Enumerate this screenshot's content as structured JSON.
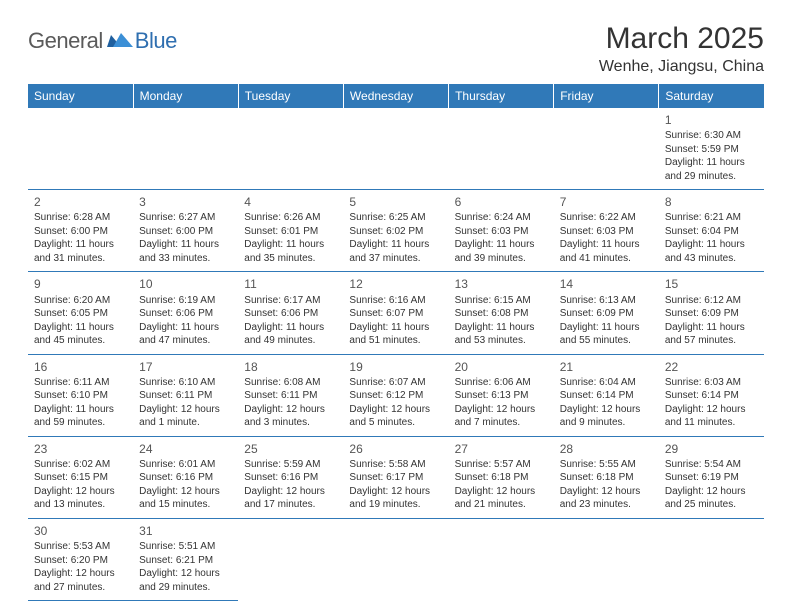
{
  "logo": {
    "general": "General",
    "blue": "Blue"
  },
  "title": "March 2025",
  "location": "Wenhe, Jiangsu, China",
  "colors": {
    "header_bg": "#3079b8",
    "header_text": "#ffffff",
    "cell_border": "#3079b8",
    "text": "#333333",
    "logo_gray": "#5a5a5a",
    "logo_blue": "#2f6fb0"
  },
  "dayHeaders": [
    "Sunday",
    "Monday",
    "Tuesday",
    "Wednesday",
    "Thursday",
    "Friday",
    "Saturday"
  ],
  "weeks": [
    [
      null,
      null,
      null,
      null,
      null,
      null,
      {
        "n": "1",
        "sr": "Sunrise: 6:30 AM",
        "ss": "Sunset: 5:59 PM",
        "dl": "Daylight: 11 hours and 29 minutes."
      }
    ],
    [
      {
        "n": "2",
        "sr": "Sunrise: 6:28 AM",
        "ss": "Sunset: 6:00 PM",
        "dl": "Daylight: 11 hours and 31 minutes."
      },
      {
        "n": "3",
        "sr": "Sunrise: 6:27 AM",
        "ss": "Sunset: 6:00 PM",
        "dl": "Daylight: 11 hours and 33 minutes."
      },
      {
        "n": "4",
        "sr": "Sunrise: 6:26 AM",
        "ss": "Sunset: 6:01 PM",
        "dl": "Daylight: 11 hours and 35 minutes."
      },
      {
        "n": "5",
        "sr": "Sunrise: 6:25 AM",
        "ss": "Sunset: 6:02 PM",
        "dl": "Daylight: 11 hours and 37 minutes."
      },
      {
        "n": "6",
        "sr": "Sunrise: 6:24 AM",
        "ss": "Sunset: 6:03 PM",
        "dl": "Daylight: 11 hours and 39 minutes."
      },
      {
        "n": "7",
        "sr": "Sunrise: 6:22 AM",
        "ss": "Sunset: 6:03 PM",
        "dl": "Daylight: 11 hours and 41 minutes."
      },
      {
        "n": "8",
        "sr": "Sunrise: 6:21 AM",
        "ss": "Sunset: 6:04 PM",
        "dl": "Daylight: 11 hours and 43 minutes."
      }
    ],
    [
      {
        "n": "9",
        "sr": "Sunrise: 6:20 AM",
        "ss": "Sunset: 6:05 PM",
        "dl": "Daylight: 11 hours and 45 minutes."
      },
      {
        "n": "10",
        "sr": "Sunrise: 6:19 AM",
        "ss": "Sunset: 6:06 PM",
        "dl": "Daylight: 11 hours and 47 minutes."
      },
      {
        "n": "11",
        "sr": "Sunrise: 6:17 AM",
        "ss": "Sunset: 6:06 PM",
        "dl": "Daylight: 11 hours and 49 minutes."
      },
      {
        "n": "12",
        "sr": "Sunrise: 6:16 AM",
        "ss": "Sunset: 6:07 PM",
        "dl": "Daylight: 11 hours and 51 minutes."
      },
      {
        "n": "13",
        "sr": "Sunrise: 6:15 AM",
        "ss": "Sunset: 6:08 PM",
        "dl": "Daylight: 11 hours and 53 minutes."
      },
      {
        "n": "14",
        "sr": "Sunrise: 6:13 AM",
        "ss": "Sunset: 6:09 PM",
        "dl": "Daylight: 11 hours and 55 minutes."
      },
      {
        "n": "15",
        "sr": "Sunrise: 6:12 AM",
        "ss": "Sunset: 6:09 PM",
        "dl": "Daylight: 11 hours and 57 minutes."
      }
    ],
    [
      {
        "n": "16",
        "sr": "Sunrise: 6:11 AM",
        "ss": "Sunset: 6:10 PM",
        "dl": "Daylight: 11 hours and 59 minutes."
      },
      {
        "n": "17",
        "sr": "Sunrise: 6:10 AM",
        "ss": "Sunset: 6:11 PM",
        "dl": "Daylight: 12 hours and 1 minute."
      },
      {
        "n": "18",
        "sr": "Sunrise: 6:08 AM",
        "ss": "Sunset: 6:11 PM",
        "dl": "Daylight: 12 hours and 3 minutes."
      },
      {
        "n": "19",
        "sr": "Sunrise: 6:07 AM",
        "ss": "Sunset: 6:12 PM",
        "dl": "Daylight: 12 hours and 5 minutes."
      },
      {
        "n": "20",
        "sr": "Sunrise: 6:06 AM",
        "ss": "Sunset: 6:13 PM",
        "dl": "Daylight: 12 hours and 7 minutes."
      },
      {
        "n": "21",
        "sr": "Sunrise: 6:04 AM",
        "ss": "Sunset: 6:14 PM",
        "dl": "Daylight: 12 hours and 9 minutes."
      },
      {
        "n": "22",
        "sr": "Sunrise: 6:03 AM",
        "ss": "Sunset: 6:14 PM",
        "dl": "Daylight: 12 hours and 11 minutes."
      }
    ],
    [
      {
        "n": "23",
        "sr": "Sunrise: 6:02 AM",
        "ss": "Sunset: 6:15 PM",
        "dl": "Daylight: 12 hours and 13 minutes."
      },
      {
        "n": "24",
        "sr": "Sunrise: 6:01 AM",
        "ss": "Sunset: 6:16 PM",
        "dl": "Daylight: 12 hours and 15 minutes."
      },
      {
        "n": "25",
        "sr": "Sunrise: 5:59 AM",
        "ss": "Sunset: 6:16 PM",
        "dl": "Daylight: 12 hours and 17 minutes."
      },
      {
        "n": "26",
        "sr": "Sunrise: 5:58 AM",
        "ss": "Sunset: 6:17 PM",
        "dl": "Daylight: 12 hours and 19 minutes."
      },
      {
        "n": "27",
        "sr": "Sunrise: 5:57 AM",
        "ss": "Sunset: 6:18 PM",
        "dl": "Daylight: 12 hours and 21 minutes."
      },
      {
        "n": "28",
        "sr": "Sunrise: 5:55 AM",
        "ss": "Sunset: 6:18 PM",
        "dl": "Daylight: 12 hours and 23 minutes."
      },
      {
        "n": "29",
        "sr": "Sunrise: 5:54 AM",
        "ss": "Sunset: 6:19 PM",
        "dl": "Daylight: 12 hours and 25 minutes."
      }
    ],
    [
      {
        "n": "30",
        "sr": "Sunrise: 5:53 AM",
        "ss": "Sunset: 6:20 PM",
        "dl": "Daylight: 12 hours and 27 minutes."
      },
      {
        "n": "31",
        "sr": "Sunrise: 5:51 AM",
        "ss": "Sunset: 6:21 PM",
        "dl": "Daylight: 12 hours and 29 minutes."
      },
      null,
      null,
      null,
      null,
      null
    ]
  ]
}
